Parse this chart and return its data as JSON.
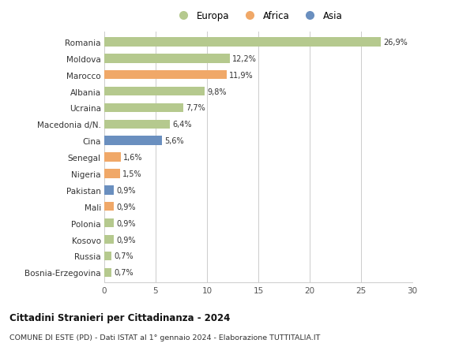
{
  "countries": [
    "Romania",
    "Moldova",
    "Marocco",
    "Albania",
    "Ucraina",
    "Macedonia d/N.",
    "Cina",
    "Senegal",
    "Nigeria",
    "Pakistan",
    "Mali",
    "Polonia",
    "Kosovo",
    "Russia",
    "Bosnia-Erzegovina"
  ],
  "values": [
    26.9,
    12.2,
    11.9,
    9.8,
    7.7,
    6.4,
    5.6,
    1.6,
    1.5,
    0.9,
    0.9,
    0.9,
    0.9,
    0.7,
    0.7
  ],
  "labels": [
    "26,9%",
    "12,2%",
    "11,9%",
    "9,8%",
    "7,7%",
    "6,4%",
    "5,6%",
    "1,6%",
    "1,5%",
    "0,9%",
    "0,9%",
    "0,9%",
    "0,9%",
    "0,7%",
    "0,7%"
  ],
  "continents": [
    "Europa",
    "Europa",
    "Africa",
    "Europa",
    "Europa",
    "Europa",
    "Asia",
    "Africa",
    "Africa",
    "Asia",
    "Africa",
    "Europa",
    "Europa",
    "Europa",
    "Europa"
  ],
  "colors": {
    "Europa": "#b5c98e",
    "Africa": "#f0a868",
    "Asia": "#6a8fbf"
  },
  "xlim": [
    0,
    30
  ],
  "xticks": [
    0,
    5,
    10,
    15,
    20,
    25,
    30
  ],
  "title_bold": "Cittadini Stranieri per Cittadinanza - 2024",
  "subtitle": "COMUNE DI ESTE (PD) - Dati ISTAT al 1° gennaio 2024 - Elaborazione TUTTITALIA.IT",
  "bg_color": "#ffffff",
  "grid_color": "#cccccc",
  "bar_height": 0.55
}
